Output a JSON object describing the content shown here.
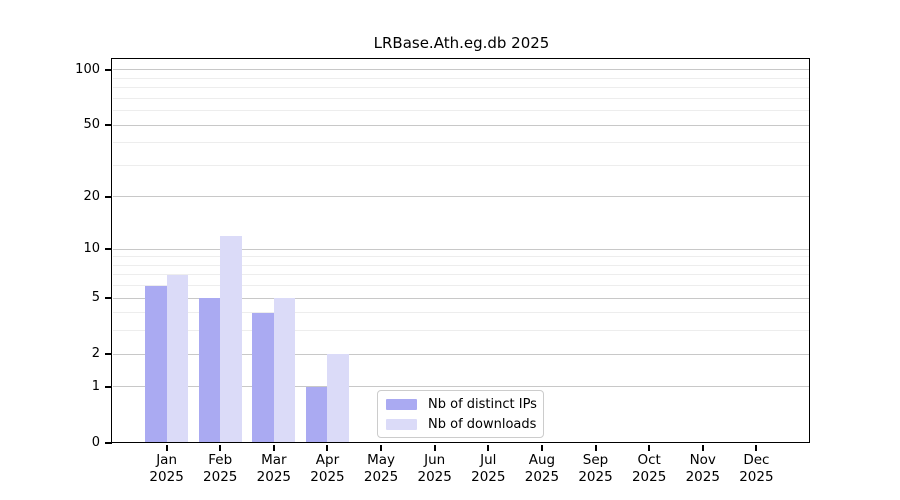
{
  "title": "LRBase.Ath.eg.db 2025",
  "chart_data": {
    "type": "bar",
    "title": "LRBase.Ath.eg.db 2025",
    "categories": [
      "Jan",
      "Feb",
      "Mar",
      "Apr",
      "May",
      "Jun",
      "Jul",
      "Aug",
      "Sep",
      "Oct",
      "Nov",
      "Dec"
    ],
    "year_label": "2025",
    "series": [
      {
        "name": "Nb of distinct IPs",
        "color": "#aaaaf2",
        "values": [
          6,
          5,
          4,
          1,
          0,
          0,
          0,
          0,
          0,
          0,
          0,
          0
        ]
      },
      {
        "name": "Nb of downloads",
        "color": "#dbdbf8",
        "values": [
          7,
          12,
          5,
          2,
          0,
          0,
          0,
          0,
          0,
          0,
          0,
          0
        ]
      }
    ],
    "y_scale": "log10(1+x)",
    "y_ticks": [
      0,
      1,
      2,
      5,
      10,
      20,
      50,
      100
    ],
    "y_minor_gridlines": [
      3,
      4,
      6,
      7,
      8,
      9,
      30,
      40,
      60,
      70,
      80,
      90
    ],
    "ylim": [
      0,
      101
    ],
    "xlabel": "",
    "ylabel": "",
    "grid": true,
    "legend_position": "bottom-center-inside",
    "colors": {
      "major_grid": "#c8c8c8",
      "minor_grid": "#ededed",
      "axis": "#000000",
      "background": "#ffffff"
    }
  }
}
